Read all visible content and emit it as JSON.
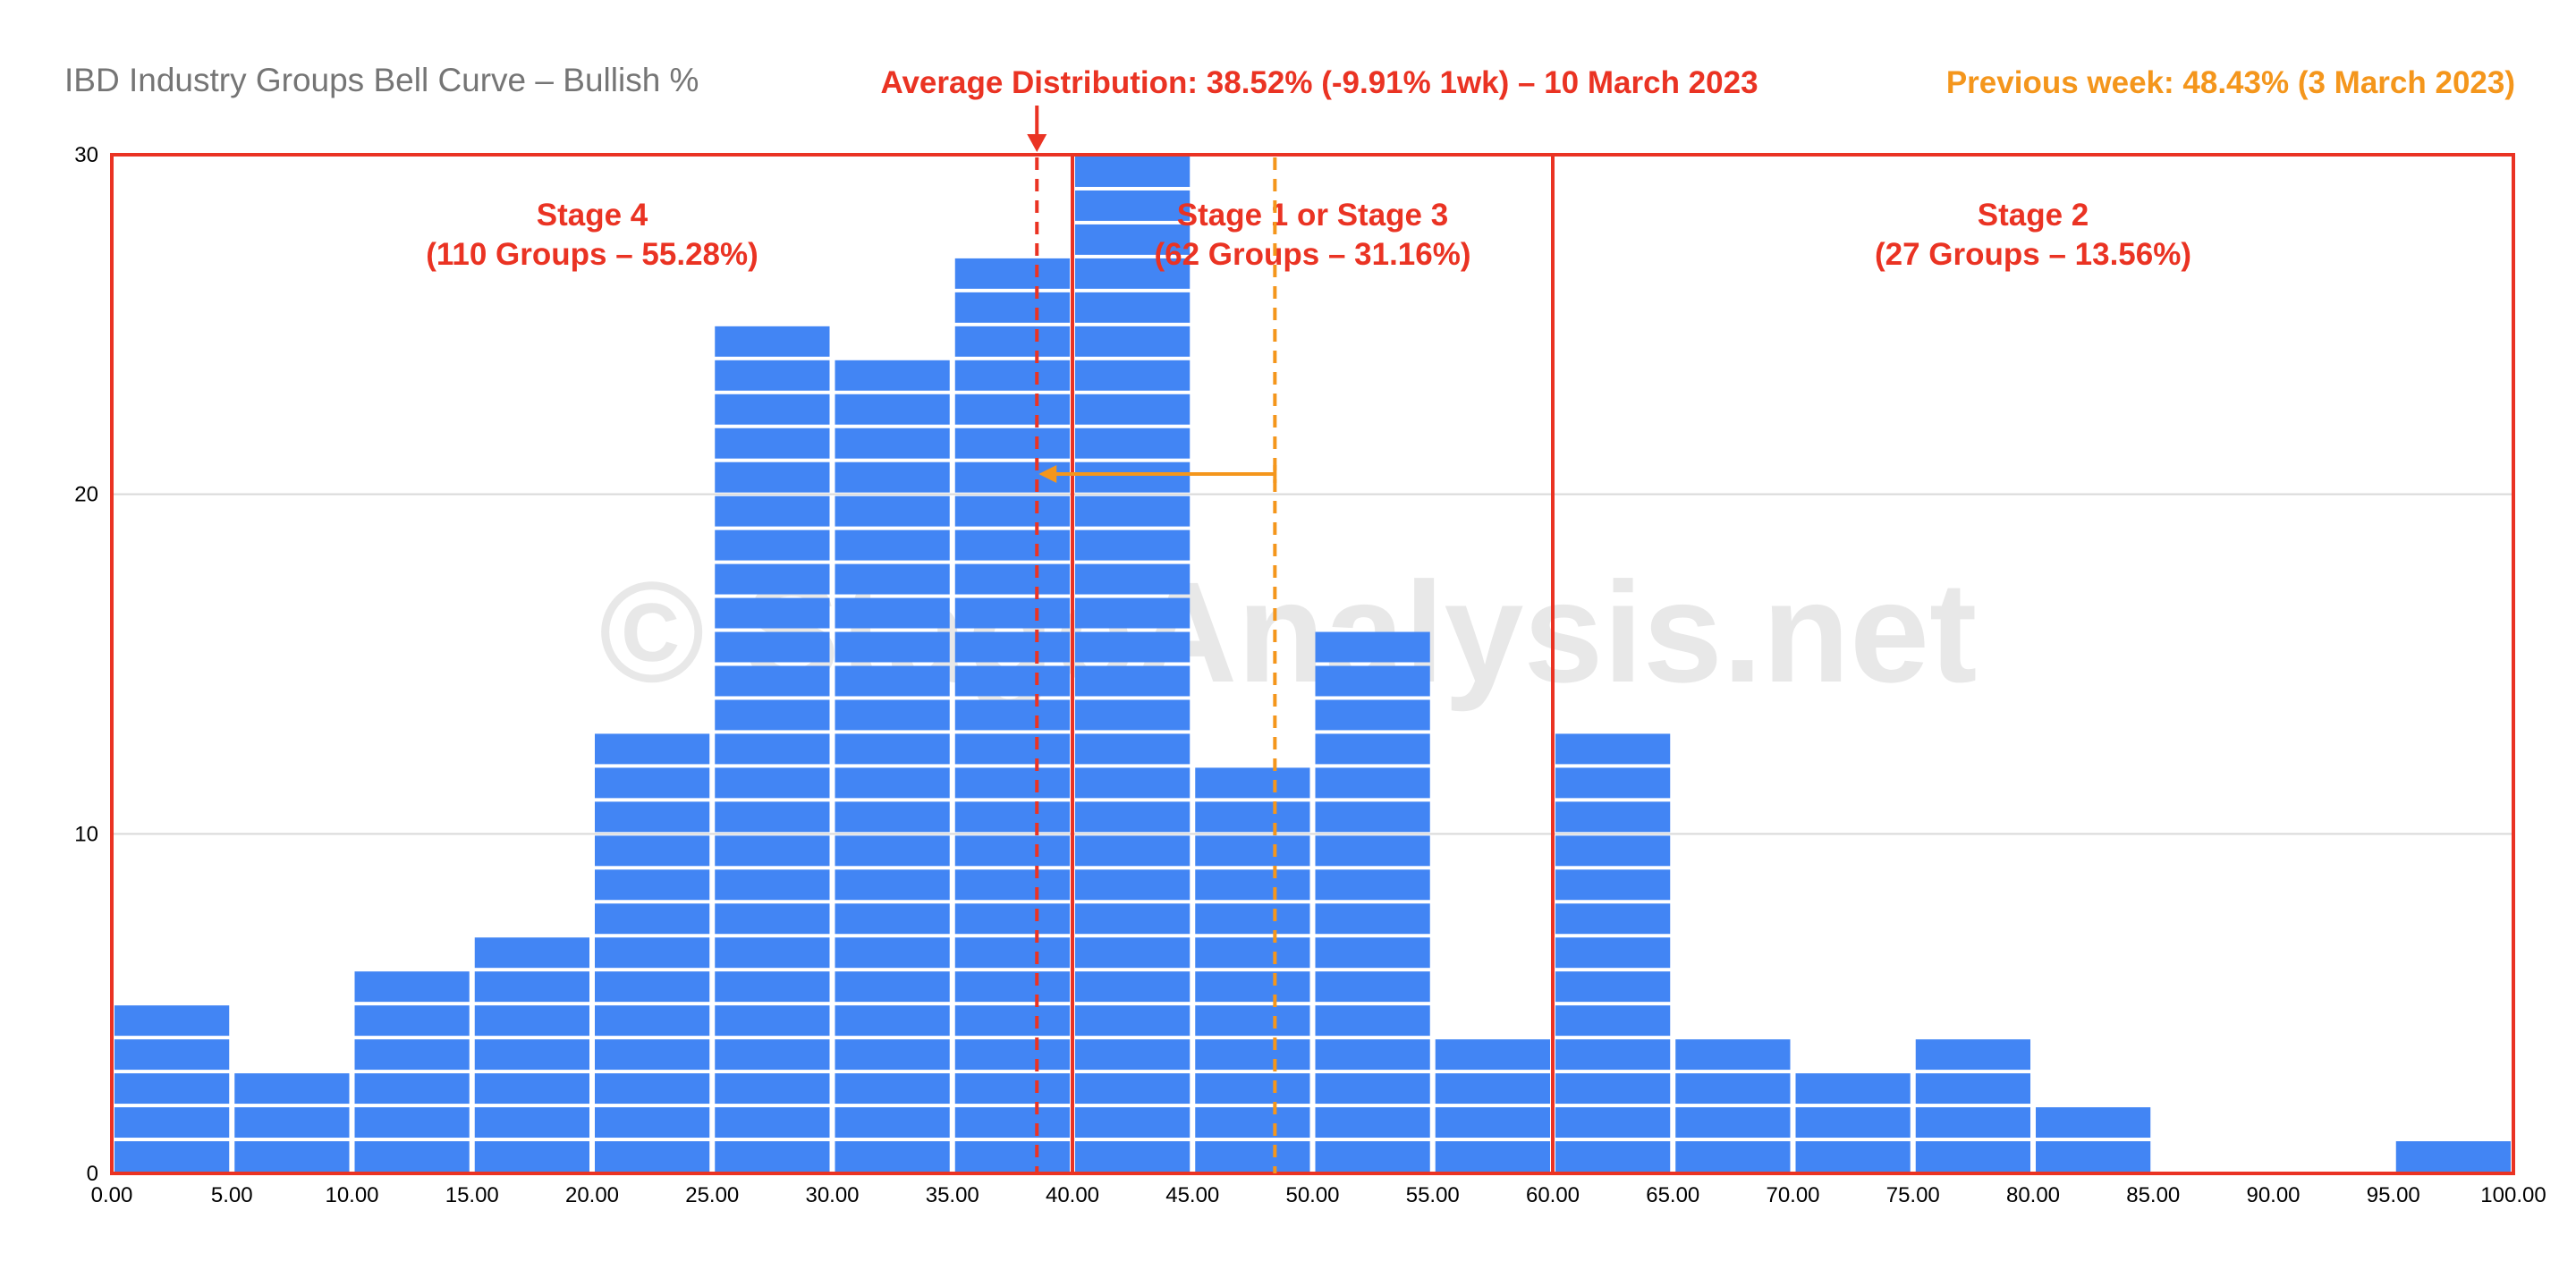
{
  "chart_data": {
    "type": "bar",
    "title": "IBD Industry Groups Bell Curve – Bullish %",
    "xlabel": "",
    "ylabel": "",
    "xlim": [
      0,
      100
    ],
    "ylim": [
      0,
      30
    ],
    "grid": true,
    "x_ticks": [
      "0.00",
      "5.00",
      "10.00",
      "15.00",
      "20.00",
      "25.00",
      "30.00",
      "35.00",
      "40.00",
      "45.00",
      "50.00",
      "55.00",
      "60.00",
      "65.00",
      "70.00",
      "75.00",
      "80.00",
      "85.00",
      "90.00",
      "95.00",
      "100.00"
    ],
    "y_ticks": [
      "0",
      "10",
      "20",
      "30"
    ],
    "bins": [
      {
        "from": 0,
        "to": 5,
        "count": 5
      },
      {
        "from": 5,
        "to": 10,
        "count": 3
      },
      {
        "from": 10,
        "to": 15,
        "count": 6
      },
      {
        "from": 15,
        "to": 20,
        "count": 7
      },
      {
        "from": 20,
        "to": 25,
        "count": 13
      },
      {
        "from": 25,
        "to": 30,
        "count": 25
      },
      {
        "from": 30,
        "to": 35,
        "count": 24
      },
      {
        "from": 35,
        "to": 40,
        "count": 27
      },
      {
        "from": 40,
        "to": 45,
        "count": 30
      },
      {
        "from": 45,
        "to": 50,
        "count": 12
      },
      {
        "from": 50,
        "to": 55,
        "count": 16
      },
      {
        "from": 55,
        "to": 60,
        "count": 4
      },
      {
        "from": 60,
        "to": 65,
        "count": 13
      },
      {
        "from": 65,
        "to": 70,
        "count": 4
      },
      {
        "from": 70,
        "to": 75,
        "count": 3
      },
      {
        "from": 75,
        "to": 80,
        "count": 4
      },
      {
        "from": 80,
        "to": 85,
        "count": 2
      },
      {
        "from": 85,
        "to": 90,
        "count": 0
      },
      {
        "from": 90,
        "to": 95,
        "count": 0
      },
      {
        "from": 95,
        "to": 100,
        "count": 1
      }
    ],
    "average_line": {
      "label": "Average Distribution: 38.52% (-9.91% 1wk) – 10 March 2023",
      "value": 38.52
    },
    "previous_line": {
      "label": "Previous week: 48.43% (3 March 2023)",
      "value": 48.43
    },
    "stages": [
      {
        "name": "Stage 4",
        "detail": "(110 Groups – 55.28%)",
        "from": 0,
        "to": 40
      },
      {
        "name": "Stage 1 or Stage 3",
        "detail": "(62 Groups – 31.16%)",
        "from": 40,
        "to": 60
      },
      {
        "name": "Stage 2",
        "detail": "(27 Groups – 13.56%)",
        "from": 60,
        "to": 100
      }
    ],
    "watermark": "© StageAnalysis.net"
  },
  "colors": {
    "bar": "#4285f4",
    "stage": "#ea3323",
    "previous": "#f4961c",
    "title": "#757575",
    "grid": "#d9d9d9",
    "watermark": "#e8e8e8"
  }
}
